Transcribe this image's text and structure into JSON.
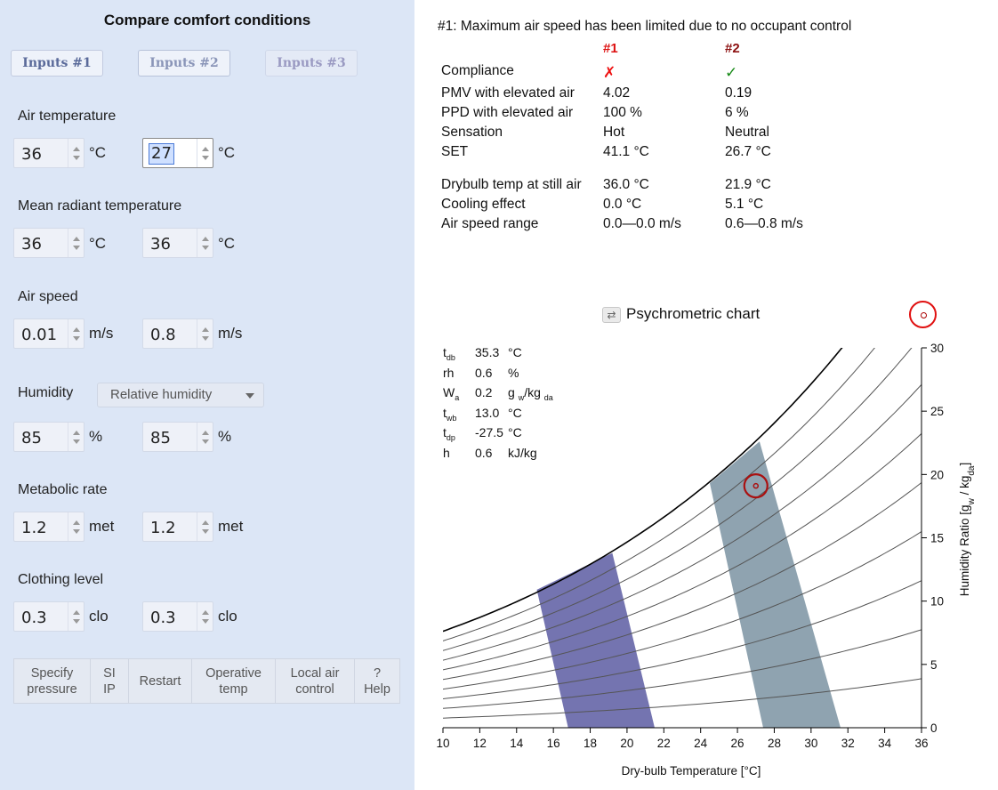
{
  "left": {
    "title": "Compare comfort conditions",
    "tabs": [
      "Inputs #1",
      "Inputs #2",
      "Inputs #3"
    ],
    "inputs": [
      {
        "label": "Air temperature",
        "v1": "36",
        "v2": "27",
        "unit": "°C"
      },
      {
        "label": "Mean radiant temperature",
        "v1": "36",
        "v2": "36",
        "unit": "°C"
      },
      {
        "label": "Air speed",
        "v1": "0.01",
        "v2": "0.8",
        "unit": "m/s"
      },
      {
        "label": "Humidity",
        "v1": "85",
        "v2": "85",
        "unit": "%",
        "select": "Relative humidity"
      },
      {
        "label": "Metabolic rate",
        "v1": "1.2",
        "v2": "1.2",
        "unit": "met"
      },
      {
        "label": "Clothing level",
        "v1": "0.3",
        "v2": "0.3",
        "unit": "clo"
      }
    ],
    "buttons": [
      {
        "l1": "Specify",
        "l2": "pressure"
      },
      {
        "l1": "SI",
        "l2": "IP"
      },
      {
        "l1": "Restart",
        "l2": ""
      },
      {
        "l1": "Operative",
        "l2": "temp"
      },
      {
        "l1": "Local air",
        "l2": "control"
      },
      {
        "l1": "?",
        "l2": "Help"
      }
    ]
  },
  "results": {
    "note": "#1: Maximum air speed has been limited due to no occupant control",
    "col1": "#1",
    "col2": "#2",
    "rows": [
      {
        "label": "Compliance",
        "v1": "✗",
        "v2": "✓"
      },
      {
        "label": "PMV with elevated air",
        "v1": "4.02",
        "v2": "0.19"
      },
      {
        "label": "PPD with elevated air",
        "v1": "100 %",
        "v2": "6 %"
      },
      {
        "label": "Sensation",
        "v1": "Hot",
        "v2": "Neutral"
      },
      {
        "label": "SET",
        "v1": "41.1 °C",
        "v2": "26.7 °C"
      },
      {
        "label": "Drybulb temp at still air",
        "v1": "36.0 °C",
        "v2": "21.9 °C"
      },
      {
        "label": "Cooling effect",
        "v1": "0.0 °C",
        "v2": "5.1 °C"
      },
      {
        "label": "Air speed range",
        "v1": "0.0—0.0 m/s",
        "v2": "0.6—0.8 m/s"
      }
    ]
  },
  "chart_hover": {
    "tdb": {
      "sym": "t",
      "sub": "db",
      "val": "35.3",
      "unit": "°C"
    },
    "rh": {
      "sym": "rh",
      "val": "0.6",
      "unit": "%"
    },
    "W": {
      "sym": "W",
      "sub": "a",
      "val": "0.2",
      "unit": "g",
      "unit_sub1": "w",
      "unit_mid": "/kg",
      "unit_sub2": "da"
    },
    "twb": {
      "sym": "t",
      "sub": "wb",
      "val": "13.0",
      "unit": "°C"
    },
    "tdp": {
      "sym": "t",
      "sub": "dp",
      "val": "-27.5",
      "unit": "°C"
    },
    "h": {
      "sym": "h",
      "val": "0.6",
      "unit": "kJ/kg"
    }
  },
  "chart_data": {
    "type": "area",
    "title": "Psychrometric chart",
    "xlabel": "Dry-bulb Temperature [°C]",
    "ylabel": "Humidity Ratio [g",
    "ylabel_sub1": "w",
    "ylabel_mid": " / kg",
    "ylabel_sub2": "da",
    "ylabel_end": "]",
    "xlim": [
      10,
      36
    ],
    "ylim": [
      0,
      30
    ],
    "x_ticks": [
      10,
      12,
      14,
      16,
      18,
      20,
      22,
      24,
      26,
      28,
      30,
      32,
      34,
      36
    ],
    "y_ticks": [
      0,
      5,
      10,
      15,
      20,
      25,
      30
    ],
    "rh_curves": [
      10,
      20,
      30,
      40,
      50,
      60,
      70,
      80,
      90,
      100
    ],
    "comfort_zones": [
      {
        "name": "#1",
        "color": "#7474b0",
        "polygon": [
          [
            16.8,
            0
          ],
          [
            21.5,
            0
          ],
          [
            19.2,
            13.8
          ],
          [
            15.1,
            10.9
          ]
        ]
      },
      {
        "name": "#2",
        "color": "#8fa3b0",
        "polygon": [
          [
            27.4,
            0
          ],
          [
            31.6,
            0
          ],
          [
            27.2,
            22.6
          ],
          [
            24.5,
            19.3
          ]
        ]
      }
    ],
    "current_point": {
      "x": 27.0,
      "y": 19.1,
      "color": "#aa1111"
    }
  },
  "colors": {
    "left_bg": "#dce6f6",
    "red": "#dd1111",
    "green": "#178a17"
  }
}
